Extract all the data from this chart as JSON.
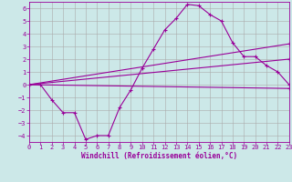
{
  "xlabel": "Windchill (Refroidissement éolien,°C)",
  "background_color": "#cce8e8",
  "line_color": "#990099",
  "grid_color": "#aaaaaa",
  "xlim": [
    0,
    23
  ],
  "ylim": [
    -4.5,
    6.5
  ],
  "xticks": [
    0,
    1,
    2,
    3,
    4,
    5,
    6,
    7,
    8,
    9,
    10,
    11,
    12,
    13,
    14,
    15,
    16,
    17,
    18,
    19,
    20,
    21,
    22,
    23
  ],
  "yticks": [
    -4,
    -3,
    -2,
    -1,
    0,
    1,
    2,
    3,
    4,
    5,
    6
  ],
  "line1_x": [
    0,
    1,
    2,
    3,
    4,
    5,
    6,
    7,
    8,
    9,
    10,
    11,
    12,
    13,
    14,
    15,
    16,
    17,
    18,
    19,
    20,
    21,
    22,
    23
  ],
  "line1_y": [
    0.0,
    0.0,
    -1.2,
    -2.2,
    -2.2,
    -4.3,
    -4.0,
    -4.0,
    -1.8,
    -0.4,
    1.3,
    2.8,
    4.3,
    5.2,
    6.3,
    6.2,
    5.5,
    5.0,
    3.3,
    2.2,
    2.2,
    1.5,
    1.0,
    0.0
  ],
  "line2_x": [
    0,
    23
  ],
  "line2_y": [
    0.0,
    -0.3
  ],
  "line3_x": [
    0,
    23
  ],
  "line3_y": [
    0.0,
    3.2
  ],
  "line4_x": [
    0,
    23
  ],
  "line4_y": [
    0.0,
    2.0
  ],
  "figsize": [
    3.2,
    2.0
  ],
  "dpi": 100
}
